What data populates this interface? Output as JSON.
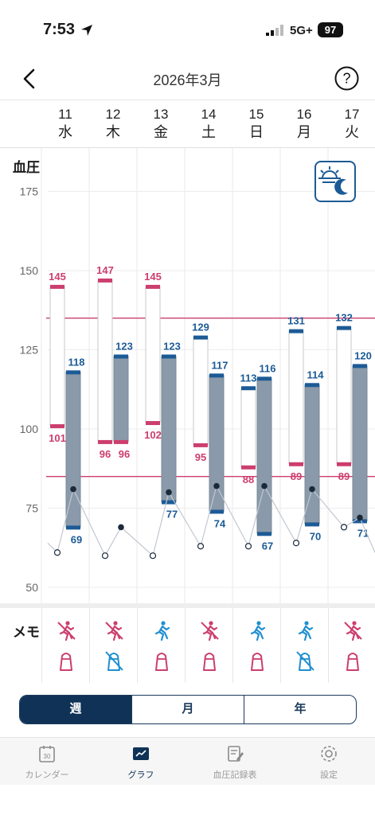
{
  "status_bar": {
    "time": "7:53",
    "network": "5G+",
    "battery": "97"
  },
  "nav": {
    "title": "2026年3月"
  },
  "days": [
    {
      "num": "11",
      "weekday": "水"
    },
    {
      "num": "12",
      "weekday": "木"
    },
    {
      "num": "13",
      "weekday": "金"
    },
    {
      "num": "14",
      "weekday": "土"
    },
    {
      "num": "15",
      "weekday": "日"
    },
    {
      "num": "16",
      "weekday": "月"
    },
    {
      "num": "17",
      "weekday": "火"
    }
  ],
  "chart_title": "血圧",
  "memo_label": "メモ",
  "chart_data": {
    "type": "bar",
    "title": "血圧",
    "categories": [
      "11",
      "12",
      "13",
      "14",
      "15",
      "16",
      "17"
    ],
    "ylim": [
      45,
      180
    ],
    "yticks": [
      50,
      75,
      100,
      125,
      150,
      175
    ],
    "reference_lines": [
      135,
      85
    ],
    "series": [
      {
        "name": "",
        "color": "#cc3e6f",
        "high": [
          145,
          147,
          145,
          null,
          null,
          null,
          null
        ],
        "low": [
          101,
          96,
          102,
          95,
          88,
          89,
          89
        ]
      },
      {
        "name": "",
        "color": "#1c5b96",
        "high": [
          118,
          123,
          123,
          117,
          116,
          114,
          120
        ],
        "low": [
          69,
          null,
          77,
          74,
          67,
          70,
          71
        ]
      },
      {
        "name": "",
        "color": "#1c5b96",
        "high": [
          null,
          null,
          null,
          129,
          113,
          131,
          132
        ],
        "low": [
          null,
          null,
          null,
          null,
          null,
          null,
          null
        ]
      }
    ],
    "pulse": {
      "open": [
        61,
        60,
        60,
        63,
        63,
        64,
        69
      ],
      "filled": [
        81,
        69,
        80,
        82,
        82,
        81,
        72
      ]
    },
    "grid": true
  },
  "memo_rows": {
    "exercise": [
      "off",
      "off",
      "on",
      "off",
      "on",
      "on",
      "off"
    ],
    "salt": [
      "on",
      "off",
      "on",
      "on",
      "on",
      "off",
      "on"
    ]
  },
  "period_tabs": [
    "週",
    "月",
    "年"
  ],
  "period_selected": "週",
  "tab_bar": [
    {
      "label": "カレンダー",
      "icon": "calendar-icon",
      "day": "30"
    },
    {
      "label": "グラフ",
      "icon": "graph-icon"
    },
    {
      "label": "血圧記録表",
      "icon": "record-sheet-icon"
    },
    {
      "label": "設定",
      "icon": "gear-icon"
    }
  ],
  "colors": {
    "pink": "#cc3e6f",
    "blue": "#1c5b96",
    "bar_fill": "#8a9aaa",
    "navy": "#0f3256"
  }
}
